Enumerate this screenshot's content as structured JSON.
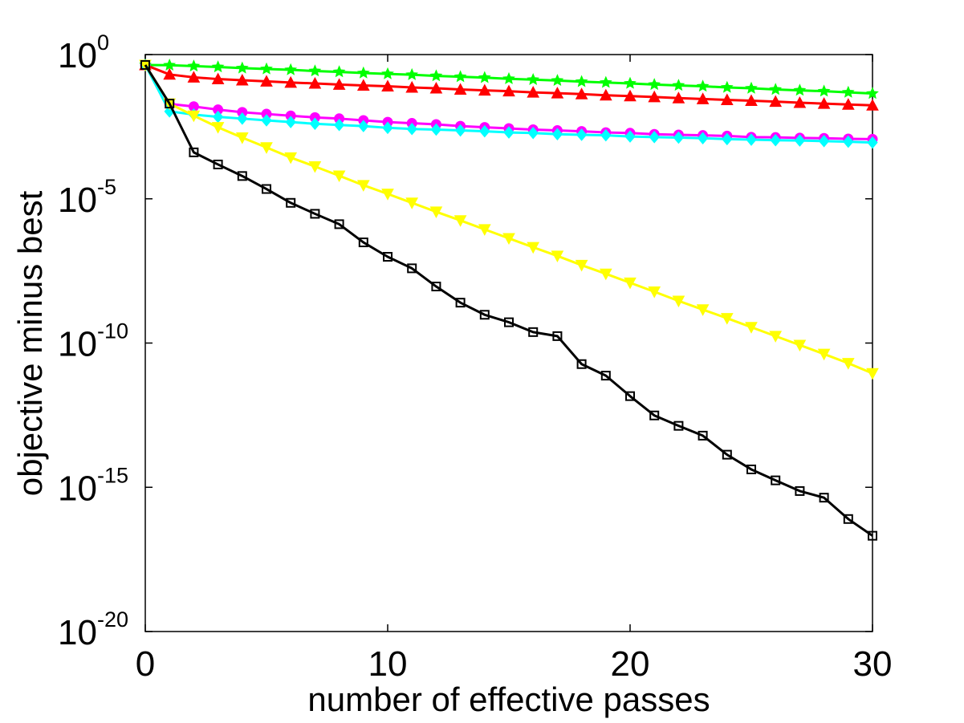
{
  "chart_data": {
    "type": "line",
    "title": "",
    "xlabel": "number of effective passes",
    "ylabel": "objective minus best",
    "xlim": [
      0,
      30
    ],
    "ylim_log10": [
      -20,
      0
    ],
    "yscale": "log",
    "grid": false,
    "x_ticks": [
      {
        "value": 0,
        "label": "0"
      },
      {
        "value": 10,
        "label": "10"
      },
      {
        "value": 20,
        "label": "20"
      },
      {
        "value": 30,
        "label": "30"
      }
    ],
    "y_ticks": [
      {
        "exp": 0,
        "base": "10",
        "label_exp": "0"
      },
      {
        "exp": -5,
        "base": "10",
        "label_exp": "-5"
      },
      {
        "exp": -10,
        "base": "10",
        "label_exp": "-10"
      },
      {
        "exp": -15,
        "base": "10",
        "label_exp": "-15"
      },
      {
        "exp": -20,
        "base": "10",
        "label_exp": "-20"
      }
    ],
    "x": [
      0,
      1,
      2,
      3,
      4,
      5,
      6,
      7,
      8,
      9,
      10,
      11,
      12,
      13,
      14,
      15,
      16,
      17,
      18,
      19,
      20,
      21,
      22,
      23,
      24,
      25,
      26,
      27,
      28,
      29,
      30
    ],
    "series": [
      {
        "name": "green-star",
        "color": "#00ff00",
        "marker": "star",
        "log10_values": [
          -0.36,
          -0.37,
          -0.4,
          -0.43,
          -0.47,
          -0.5,
          -0.53,
          -0.57,
          -0.6,
          -0.64,
          -0.67,
          -0.7,
          -0.74,
          -0.77,
          -0.8,
          -0.84,
          -0.87,
          -0.9,
          -0.94,
          -0.97,
          -1.0,
          -1.04,
          -1.07,
          -1.1,
          -1.14,
          -1.17,
          -1.21,
          -1.24,
          -1.27,
          -1.31,
          -1.35
        ]
      },
      {
        "name": "red-triangle-up",
        "color": "#ff0000",
        "marker": "triangle-up",
        "log10_values": [
          -0.36,
          -0.69,
          -0.79,
          -0.85,
          -0.89,
          -0.93,
          -0.97,
          -1.0,
          -1.04,
          -1.07,
          -1.1,
          -1.14,
          -1.17,
          -1.21,
          -1.24,
          -1.27,
          -1.31,
          -1.34,
          -1.37,
          -1.41,
          -1.44,
          -1.47,
          -1.51,
          -1.54,
          -1.57,
          -1.6,
          -1.63,
          -1.67,
          -1.7,
          -1.73,
          -1.76
        ]
      },
      {
        "name": "magenta-circle",
        "color": "#ff00ff",
        "marker": "circle",
        "log10_values": [
          -0.36,
          -1.71,
          -1.8,
          -1.91,
          -2.0,
          -2.06,
          -2.12,
          -2.18,
          -2.22,
          -2.28,
          -2.34,
          -2.38,
          -2.42,
          -2.48,
          -2.52,
          -2.56,
          -2.6,
          -2.63,
          -2.66,
          -2.7,
          -2.72,
          -2.76,
          -2.78,
          -2.8,
          -2.82,
          -2.86,
          -2.87,
          -2.89,
          -2.9,
          -2.92,
          -2.93
        ]
      },
      {
        "name": "cyan-diamond",
        "color": "#00ffff",
        "marker": "diamond",
        "log10_values": [
          -0.36,
          -1.97,
          -2.08,
          -2.16,
          -2.22,
          -2.28,
          -2.34,
          -2.4,
          -2.44,
          -2.48,
          -2.54,
          -2.58,
          -2.6,
          -2.63,
          -2.66,
          -2.7,
          -2.72,
          -2.76,
          -2.78,
          -2.8,
          -2.84,
          -2.86,
          -2.88,
          -2.9,
          -2.93,
          -2.95,
          -2.97,
          -2.98,
          -3.0,
          -3.02,
          -3.05
        ]
      },
      {
        "name": "yellow-triangle-down",
        "color": "#ffff00",
        "marker": "triangle-down",
        "log10_values": [
          -0.36,
          -1.7,
          -2.12,
          -2.52,
          -2.88,
          -3.22,
          -3.57,
          -3.88,
          -4.2,
          -4.53,
          -4.83,
          -5.14,
          -5.45,
          -5.75,
          -6.06,
          -6.37,
          -6.68,
          -6.98,
          -7.3,
          -7.6,
          -7.91,
          -8.22,
          -8.54,
          -8.84,
          -9.14,
          -9.45,
          -9.76,
          -10.07,
          -10.38,
          -10.7,
          -11.05
        ]
      },
      {
        "name": "black-square",
        "color": "#000000",
        "marker": "square",
        "log10_values": [
          -0.36,
          -1.7,
          -3.39,
          -3.81,
          -4.21,
          -4.66,
          -5.14,
          -5.52,
          -5.88,
          -6.51,
          -7.01,
          -7.41,
          -8.04,
          -8.6,
          -9.02,
          -9.28,
          -9.62,
          -9.76,
          -10.73,
          -11.13,
          -11.84,
          -12.51,
          -12.87,
          -13.21,
          -13.87,
          -14.38,
          -14.76,
          -15.13,
          -15.36,
          -16.1,
          -16.68
        ]
      }
    ]
  }
}
